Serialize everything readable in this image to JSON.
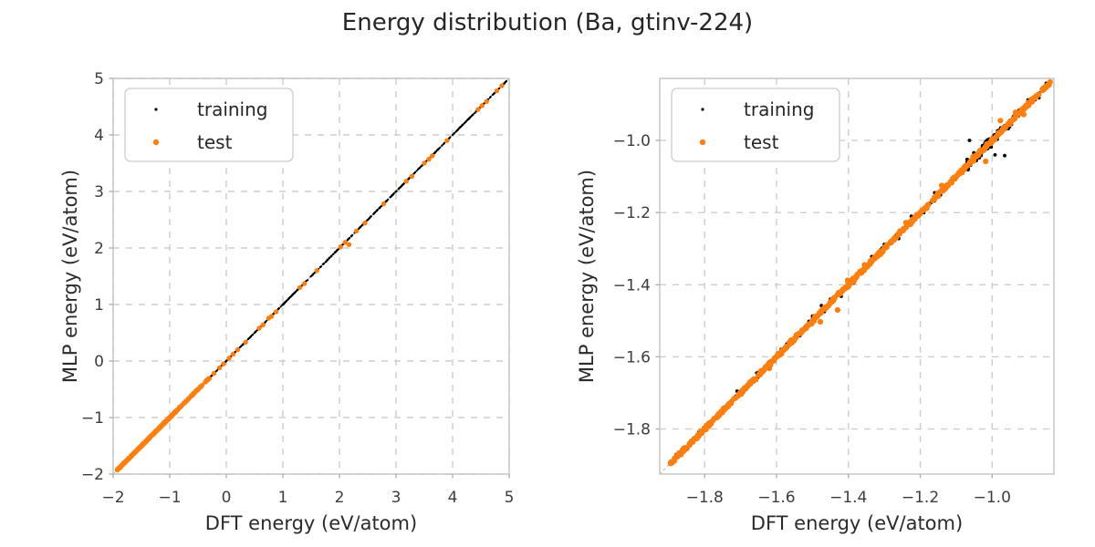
{
  "title": "Energy distribution (Ba, gtinv-224)",
  "colors": {
    "training": "#000000",
    "test": "#ff7f0e",
    "grid": "#cdcdcd",
    "spine": "#c9c9c9",
    "diagonal": "#b5b5b5",
    "tick": "#b0b0b0",
    "title_text": "#262626",
    "label_text": "#2b2b2b",
    "tick_text": "#3d3d3d",
    "legend_border": "#cccccc",
    "legend_bg": "#ffffff"
  },
  "legend": {
    "items": [
      {
        "label": "training",
        "color": "#000000",
        "marker_r": 1.6
      },
      {
        "label": "test",
        "color": "#ff7f0e",
        "marker_r": 3.2
      }
    ]
  },
  "chart_data": {
    "type": "scatter",
    "seed": 20240613,
    "charts": [
      {
        "name": "full-range-parity",
        "xlabel": "DFT energy (eV/atom)",
        "ylabel": "MLP energy (eV/atom)",
        "xlim": [
          -2.0,
          5.0
        ],
        "ylim": [
          -2.0,
          5.0
        ],
        "xticks": [
          -2,
          -1,
          0,
          1,
          2,
          3,
          4,
          5
        ],
        "xtick_labels": [
          "−2",
          "−1",
          "0",
          "1",
          "2",
          "3",
          "4",
          "5"
        ],
        "yticks": [
          -2,
          -1,
          0,
          1,
          2,
          3,
          4,
          5
        ],
        "ytick_labels": [
          "−2",
          "−1",
          "0",
          "1",
          "2",
          "3",
          "4",
          "5"
        ],
        "grid": true,
        "diagonal": true,
        "series": [
          {
            "name": "training",
            "color": "#000000",
            "radius": 1.1,
            "bands": [
              {
                "from": -1.93,
                "to": 4.96,
                "count": 900,
                "jitter": 0.004
              }
            ],
            "points": []
          },
          {
            "name": "test",
            "color": "#ff7f0e",
            "radius": 2.7,
            "bands": [
              {
                "from": -1.93,
                "to": -0.88,
                "count": 380,
                "jitter": 0.008
              },
              {
                "from": -0.88,
                "to": -0.3,
                "count": 60,
                "jitter": 0.008
              }
            ],
            "points": [
              [
                -0.22,
                -0.22
              ],
              [
                -0.12,
                -0.12
              ],
              [
                -0.05,
                -0.05
              ],
              [
                0.05,
                0.05
              ],
              [
                0.12,
                0.12
              ],
              [
                0.2,
                0.2
              ],
              [
                0.34,
                0.33
              ],
              [
                0.58,
                0.58
              ],
              [
                0.65,
                0.64
              ],
              [
                0.75,
                0.76
              ],
              [
                0.8,
                0.79
              ],
              [
                0.88,
                0.87
              ],
              [
                1.3,
                1.3
              ],
              [
                1.38,
                1.37
              ],
              [
                1.6,
                1.6
              ],
              [
                2.02,
                2.02
              ],
              [
                2.1,
                2.1
              ],
              [
                2.17,
                2.06
              ],
              [
                2.3,
                2.3
              ],
              [
                2.45,
                2.44
              ],
              [
                2.78,
                2.78
              ],
              [
                3.18,
                3.18
              ],
              [
                3.28,
                3.27
              ],
              [
                3.5,
                3.5
              ],
              [
                3.58,
                3.57
              ],
              [
                3.64,
                3.63
              ],
              [
                3.9,
                3.9
              ],
              [
                4.45,
                4.45
              ],
              [
                4.52,
                4.52
              ],
              [
                4.6,
                4.59
              ],
              [
                4.78,
                4.78
              ],
              [
                4.87,
                4.87
              ]
            ]
          }
        ]
      },
      {
        "name": "zoomed-parity",
        "xlabel": "DFT energy (eV/atom)",
        "ylabel": "MLP energy (eV/atom)",
        "xlim": [
          -1.925,
          -0.828
        ],
        "ylim": [
          -1.925,
          -0.828
        ],
        "xticks": [
          -1.8,
          -1.6,
          -1.4,
          -1.2,
          -1.0
        ],
        "xtick_labels": [
          "−1.8",
          "−1.6",
          "−1.4",
          "−1.2",
          "−1.0"
        ],
        "yticks": [
          -1.8,
          -1.6,
          -1.4,
          -1.2,
          -1.0
        ],
        "ytick_labels": [
          "−1.8",
          "−1.6",
          "−1.4",
          "−1.2",
          "−1.0"
        ],
        "grid": true,
        "diagonal": true,
        "series": [
          {
            "name": "training",
            "color": "#000000",
            "radius": 1.9,
            "bands": [
              {
                "from": -1.895,
                "to": -0.84,
                "count": 450,
                "jitter": 0.007
              },
              {
                "from": -1.07,
                "to": -0.94,
                "count": 130,
                "jitter": 0.015
              }
            ],
            "points": [
              [
                -1.71,
                -1.695
              ],
              [
                -1.655,
                -1.645
              ],
              [
                -1.5,
                -1.487
              ],
              [
                -1.475,
                -1.458
              ],
              [
                -1.45,
                -1.44
              ],
              [
                -1.42,
                -1.432
              ],
              [
                -1.385,
                -1.395
              ],
              [
                -1.335,
                -1.322
              ],
              [
                -1.3,
                -1.288
              ],
              [
                -1.26,
                -1.272
              ],
              [
                -1.225,
                -1.21
              ],
              [
                -1.19,
                -1.2
              ],
              [
                -1.16,
                -1.145
              ],
              [
                -1.063,
                -1.0
              ],
              [
                -0.992,
                -1.04
              ],
              [
                -0.965,
                -1.042
              ],
              [
                -0.9,
                -0.888
              ],
              [
                -0.87,
                -0.882
              ],
              [
                -0.855,
                -0.85
              ]
            ]
          },
          {
            "name": "test",
            "color": "#ff7f0e",
            "radius": 3.1,
            "bands": [
              {
                "from": -1.895,
                "to": -0.838,
                "count": 600,
                "jitter": 0.0045
              }
            ],
            "points": [
              [
                -1.62,
                -1.632
              ],
              [
                -1.478,
                -1.503
              ],
              [
                -1.43,
                -1.47
              ],
              [
                -1.402,
                -1.388
              ],
              [
                -1.355,
                -1.345
              ],
              [
                -1.24,
                -1.228
              ],
              [
                -1.14,
                -1.125
              ],
              [
                -1.053,
                -1.045
              ],
              [
                -1.018,
                -1.058
              ],
              [
                -0.977,
                -0.945
              ],
              [
                -0.935,
                -0.922
              ],
              [
                -0.912,
                -0.928
              ]
            ]
          }
        ]
      }
    ]
  }
}
